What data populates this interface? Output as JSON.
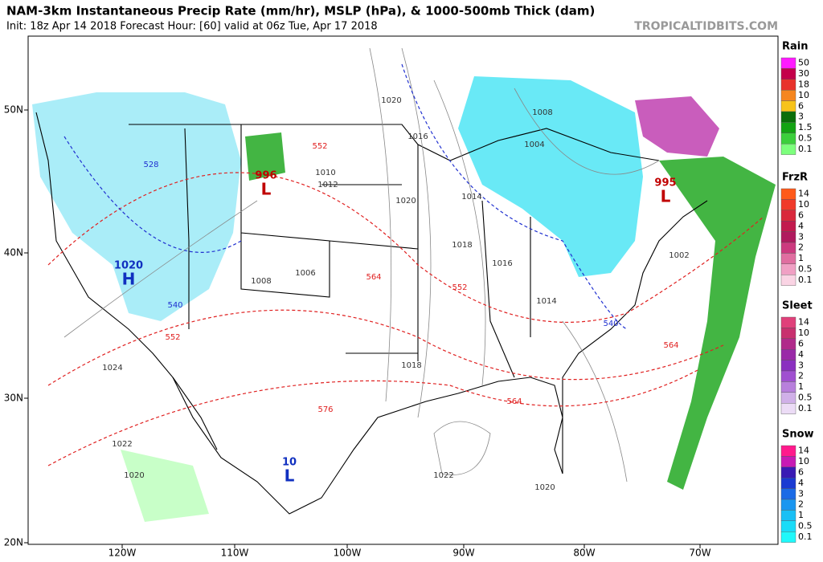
{
  "header": {
    "title": "NAM-3km Instantaneous Precip Rate (mm/hr), MSLP (hPa), & 1000-500mb Thick (dam)",
    "subtitle": "Init: 18z Apr 14 2018   Forecast Hour: [60]   valid at 06z Tue, Apr 17 2018",
    "watermark": "TROPICALTIDBITS.COM"
  },
  "axes": {
    "longitudes": [
      "120W",
      "110W",
      "100W",
      "90W",
      "80W",
      "70W"
    ],
    "latitudes": [
      "50N",
      "40N",
      "30N",
      "20N"
    ]
  },
  "legends": [
    {
      "title": "Rain",
      "levels": [
        50,
        30,
        18,
        10,
        6,
        3,
        1.5,
        0.5,
        0.1
      ],
      "colors": [
        "#ff1aff",
        "#c4004a",
        "#e8322c",
        "#f5861f",
        "#f7c31a",
        "#0a6e0a",
        "#13a313",
        "#3ccf3c",
        "#7dff7d"
      ]
    },
    {
      "title": "FrzR",
      "levels": [
        14,
        10,
        6,
        4,
        3,
        2,
        1,
        0.5,
        0.1
      ],
      "colors": [
        "#ff5a1a",
        "#f03a2a",
        "#d9283c",
        "#c21a4e",
        "#b01a5e",
        "#cc3a7e",
        "#e06ea0",
        "#f0a0c4",
        "#fad4e4"
      ]
    },
    {
      "title": "Sleet",
      "levels": [
        14,
        10,
        6,
        4,
        3,
        2,
        1,
        0.5,
        0.1
      ],
      "colors": [
        "#e0407a",
        "#c8306e",
        "#b02a8a",
        "#9a2aa8",
        "#8a30c0",
        "#a050d0",
        "#b880dc",
        "#d0b0e8",
        "#ecdcf6"
      ]
    },
    {
      "title": "Snow",
      "levels": [
        14,
        10,
        6,
        4,
        3,
        2,
        1,
        0.5,
        0.1
      ],
      "colors": [
        "#ff1a8c",
        "#c81ab4",
        "#3a1ab4",
        "#1a3ad2",
        "#1a6ae6",
        "#1a96f0",
        "#1ac0f5",
        "#1adcf8",
        "#20f8fa"
      ]
    }
  ],
  "pressure_centers": [
    {
      "symbol": "L",
      "pressure": "996"
    },
    {
      "symbol": "L",
      "pressure": "995"
    },
    {
      "symbol": "H",
      "pressure": "1020"
    },
    {
      "symbol": "L",
      "pressure": "10"
    }
  ],
  "isobar_labels": [
    "1020",
    "1016",
    "1018",
    "1016",
    "1014",
    "1008",
    "1004",
    "1012",
    "1010",
    "1006",
    "1008",
    "1020",
    "1018",
    "1022",
    "1014",
    "1002",
    "1020",
    "1024",
    "1022",
    "1020"
  ],
  "thickness_labels": [
    "552",
    "564",
    "552",
    "540",
    "564",
    "576",
    "528",
    "540",
    "552",
    "564"
  ]
}
